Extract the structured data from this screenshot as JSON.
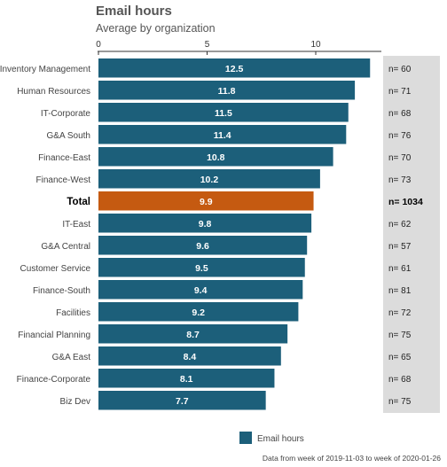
{
  "chart_data": {
    "type": "bar",
    "orientation": "horizontal",
    "title": "Email hours",
    "subtitle": "Average by organization",
    "categories": [
      "Inventory Management",
      "Human Resources",
      "IT-Corporate",
      "G&A South",
      "Finance-East",
      "Finance-West",
      "Total",
      "IT-East",
      "G&A Central",
      "Customer Service",
      "Finance-South",
      "Facilities",
      "Financial Planning",
      "G&A East",
      "Finance-Corporate",
      "Biz Dev"
    ],
    "values": [
      12.5,
      11.8,
      11.5,
      11.4,
      10.8,
      10.2,
      9.9,
      9.8,
      9.6,
      9.5,
      9.4,
      9.2,
      8.7,
      8.4,
      8.1,
      7.7
    ],
    "value_labels": [
      "12.5",
      "11.8",
      "11.5",
      "11.4",
      "10.8",
      "10.2",
      "9.9",
      "9.8",
      "9.6",
      "9.5",
      "9.4",
      "9.2",
      "8.7",
      "8.4",
      "8.1",
      "7.7"
    ],
    "n_labels": [
      "n= 60",
      "n= 71",
      "n= 68",
      "n= 76",
      "n= 70",
      "n= 73",
      "n= 1034",
      "n= 62",
      "n= 57",
      "n= 61",
      "n= 81",
      "n= 72",
      "n= 75",
      "n= 65",
      "n= 68",
      "n= 75"
    ],
    "highlight_category": "Total",
    "x_ticks": [
      0,
      5,
      10
    ],
    "xlim": [
      0,
      13
    ],
    "grid": false,
    "axis_position": "top",
    "colors": {
      "bar": "#1c5f7a",
      "highlight": "#c55a11",
      "n_panel": "#dcdcdc"
    },
    "legend": {
      "label": "Email hours",
      "position": "bottom"
    },
    "caption": "Data from week of 2019-11-03 to week of 2020-01-26"
  }
}
